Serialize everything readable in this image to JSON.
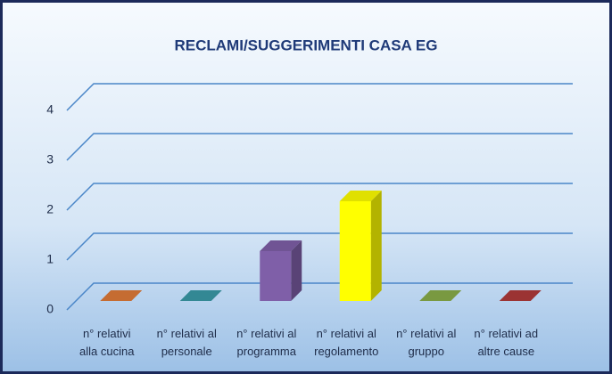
{
  "chart_data": {
    "type": "bar3d",
    "title": "RECLAMI/SUGGERIMENTI  CASA EG",
    "categories": [
      "n° relativi\nalla cucina",
      "n° relativi al\npersonale",
      "n° relativi al\nprogramma",
      "n° relativi al\nregolamento",
      "n° relativi al\ngruppo",
      "n° relativi ad\naltre cause"
    ],
    "values": [
      0,
      0,
      1,
      2,
      0,
      0
    ],
    "colors": [
      "#e07b39",
      "#3a9aa8",
      "#7f5fa8",
      "#ffff00",
      "#8aae4a",
      "#b03a3a"
    ],
    "ylim": [
      0,
      4
    ],
    "yticks": [
      0,
      1,
      2,
      3,
      4
    ],
    "grid": true
  }
}
